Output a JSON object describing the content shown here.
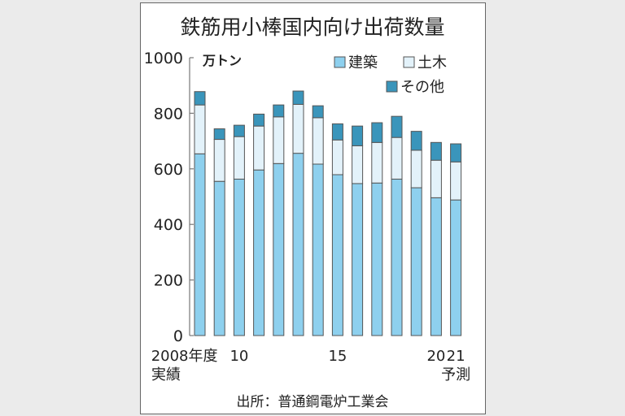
{
  "chart_data": {
    "type": "bar",
    "stacked": true,
    "title": "鉄筋用小棒国内向け出荷数量",
    "unit": "万トン",
    "categories": [
      "2008",
      "2009",
      "2010",
      "2011",
      "2012",
      "2013",
      "2014",
      "2015",
      "2016",
      "2017",
      "2018",
      "2019",
      "2020",
      "2021"
    ],
    "x_tick_labels": [
      {
        "category": "2008",
        "label": "2008年度",
        "sub": "実績"
      },
      {
        "category": "2010",
        "label": "10"
      },
      {
        "category": "2015",
        "label": "15"
      },
      {
        "category": "2020",
        "label": "20"
      },
      {
        "category": "2021",
        "label": "21",
        "sub": "予測"
      }
    ],
    "series": [
      {
        "name": "建築",
        "color": "#8ed0ee",
        "values": [
          654,
          555,
          563,
          596,
          619,
          656,
          617,
          579,
          547,
          549,
          563,
          532,
          496,
          488
        ]
      },
      {
        "name": "土木",
        "color": "#e3f2fa",
        "values": [
          176,
          151,
          153,
          158,
          168,
          176,
          167,
          125,
          136,
          146,
          150,
          135,
          135,
          137
        ]
      },
      {
        "name": "その他",
        "color": "#3a95bb",
        "values": [
          48,
          38,
          41,
          43,
          43,
          48,
          43,
          58,
          71,
          71,
          76,
          68,
          64,
          65
        ]
      }
    ],
    "ylim": [
      0,
      1000
    ],
    "yticks": [
      0,
      200,
      400,
      600,
      800,
      1000
    ],
    "grid": false,
    "legend": "top-right",
    "source": "出所：普通鋼電炉工業会"
  }
}
